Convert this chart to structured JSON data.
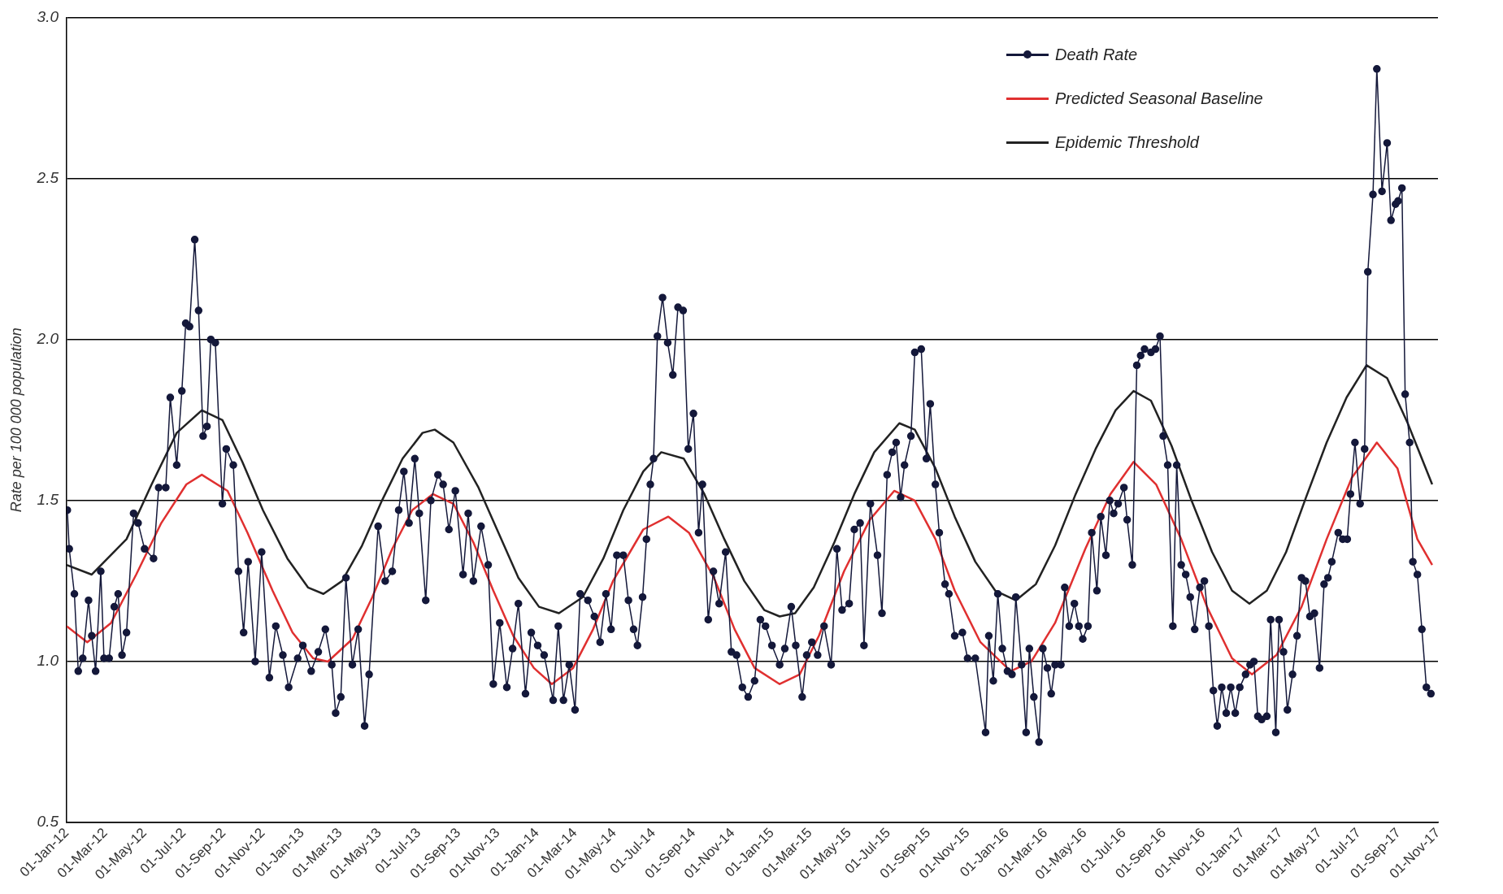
{
  "chart_data": {
    "type": "line",
    "ylabel": "Rate per 100 000 population",
    "xlim": [
      "2012-01-01",
      "2017-11-01"
    ],
    "xticks": [
      {
        "value": "2012-01-01",
        "label": "01-Jan-12"
      },
      {
        "value": "2012-03-01",
        "label": "01-Mar-12"
      },
      {
        "value": "2012-05-01",
        "label": "01-May-12"
      },
      {
        "value": "2012-07-01",
        "label": "01-Jul-12"
      },
      {
        "value": "2012-09-01",
        "label": "01-Sep-12"
      },
      {
        "value": "2012-11-01",
        "label": "01-Nov-12"
      },
      {
        "value": "2013-01-01",
        "label": "01-Jan-13"
      },
      {
        "value": "2013-03-01",
        "label": "01-Mar-13"
      },
      {
        "value": "2013-05-01",
        "label": "01-May-13"
      },
      {
        "value": "2013-07-01",
        "label": "01-Jul-13"
      },
      {
        "value": "2013-09-01",
        "label": "01-Sep-13"
      },
      {
        "value": "2013-11-01",
        "label": "01-Nov-13"
      },
      {
        "value": "2014-01-01",
        "label": "01-Jan-14"
      },
      {
        "value": "2014-03-01",
        "label": "01-Mar-14"
      },
      {
        "value": "2014-05-01",
        "label": "01-May-14"
      },
      {
        "value": "2014-07-01",
        "label": "01-Jul-14"
      },
      {
        "value": "2014-09-01",
        "label": "01-Sep-14"
      },
      {
        "value": "2014-11-01",
        "label": "01-Nov-14"
      },
      {
        "value": "2015-01-01",
        "label": "01-Jan-15"
      },
      {
        "value": "2015-03-01",
        "label": "01-Mar-15"
      },
      {
        "value": "2015-05-01",
        "label": "01-May-15"
      },
      {
        "value": "2015-07-01",
        "label": "01-Jul-15"
      },
      {
        "value": "2015-09-01",
        "label": "01-Sep-15"
      },
      {
        "value": "2015-11-01",
        "label": "01-Nov-15"
      },
      {
        "value": "2016-01-01",
        "label": "01-Jan-16"
      },
      {
        "value": "2016-03-01",
        "label": "01-Mar-16"
      },
      {
        "value": "2016-05-01",
        "label": "01-May-16"
      },
      {
        "value": "2016-07-01",
        "label": "01-Jul-16"
      },
      {
        "value": "2016-09-01",
        "label": "01-Sep-16"
      },
      {
        "value": "2016-11-01",
        "label": "01-Nov-16"
      },
      {
        "value": "2017-01-01",
        "label": "01-Jan-17"
      },
      {
        "value": "2017-03-01",
        "label": "01-Mar-17"
      },
      {
        "value": "2017-05-01",
        "label": "01-May-17"
      },
      {
        "value": "2017-07-01",
        "label": "01-Jul-17"
      },
      {
        "value": "2017-09-01",
        "label": "01-Sep-17"
      },
      {
        "value": "2017-11-01",
        "label": "01-Nov-17"
      }
    ],
    "ylim": [
      0.5,
      3.0
    ],
    "yticks": [
      0.5,
      {
        "value": 1,
        "label": "1.0"
      },
      1.5,
      {
        "value": 2,
        "label": "2.0"
      },
      2.5,
      {
        "value": 3,
        "label": "3.0"
      }
    ],
    "grid": "y",
    "legend": "top right",
    "line_style": "solid",
    "series": [
      {
        "name": "Death Rate",
        "color": "#14183a",
        "marker": "circle",
        "x": [
          "2012-01-02",
          "2012-01-05",
          "2012-01-13",
          "2012-01-19",
          "2012-01-26",
          "2012-02-04",
          "2012-02-09",
          "2012-02-15",
          "2012-02-23",
          "2012-02-28",
          "2012-03-07",
          "2012-03-15",
          "2012-03-21",
          "2012-03-27",
          "2012-04-03",
          "2012-04-14",
          "2012-04-21",
          "2012-05-01",
          "2012-05-15",
          "2012-05-23",
          "2012-06-03",
          "2012-06-10",
          "2012-06-20",
          "2012-06-28",
          "2012-07-04",
          "2012-07-10",
          "2012-07-18",
          "2012-07-24",
          "2012-07-31",
          "2012-08-06",
          "2012-08-12",
          "2012-08-19",
          "2012-08-30",
          "2012-09-05",
          "2012-09-16",
          "2012-09-24",
          "2012-10-02",
          "2012-10-09",
          "2012-10-20",
          "2012-10-30",
          "2012-11-11",
          "2012-11-21",
          "2012-12-02",
          "2012-12-11",
          "2012-12-25",
          "2013-01-02",
          "2013-01-15",
          "2013-01-26",
          "2013-02-06",
          "2013-02-16",
          "2013-02-22",
          "2013-03-02",
          "2013-03-10",
          "2013-03-20",
          "2013-03-29",
          "2013-04-08",
          "2013-04-15",
          "2013-04-29",
          "2013-05-10",
          "2013-05-21",
          "2013-05-31",
          "2013-06-08",
          "2013-06-16",
          "2013-06-25",
          "2013-07-02",
          "2013-07-12",
          "2013-07-20",
          "2013-07-31",
          "2013-08-08",
          "2013-08-17",
          "2013-08-27",
          "2013-09-08",
          "2013-09-16",
          "2013-09-24",
          "2013-10-06",
          "2013-10-17",
          "2013-10-25",
          "2013-11-04",
          "2013-11-15",
          "2013-11-24",
          "2013-12-03",
          "2013-12-14",
          "2013-12-23",
          "2014-01-02",
          "2014-01-12",
          "2014-01-26",
          "2014-02-03",
          "2014-02-11",
          "2014-02-20",
          "2014-03-01",
          "2014-03-09",
          "2014-03-21",
          "2014-03-31",
          "2014-04-09",
          "2014-04-18",
          "2014-04-26",
          "2014-05-05",
          "2014-05-15",
          "2014-05-23",
          "2014-05-31",
          "2014-06-06",
          "2014-06-14",
          "2014-06-20",
          "2014-06-26",
          "2014-07-01",
          "2014-07-07",
          "2014-07-15",
          "2014-07-23",
          "2014-07-31",
          "2014-08-08",
          "2014-08-16",
          "2014-08-24",
          "2014-09-01",
          "2014-09-09",
          "2014-09-15",
          "2014-09-24",
          "2014-10-02",
          "2014-10-11",
          "2014-10-21",
          "2014-10-30",
          "2014-11-07",
          "2014-11-16",
          "2014-11-25",
          "2014-12-05",
          "2014-12-14",
          "2014-12-22",
          "2015-01-01",
          "2015-01-13",
          "2015-01-21",
          "2015-01-31",
          "2015-02-07",
          "2015-02-17",
          "2015-02-24",
          "2015-03-04",
          "2015-03-13",
          "2015-03-23",
          "2015-04-03",
          "2015-04-12",
          "2015-04-20",
          "2015-05-01",
          "2015-05-09",
          "2015-05-18",
          "2015-05-24",
          "2015-06-03",
          "2015-06-14",
          "2015-06-21",
          "2015-06-29",
          "2015-07-07",
          "2015-07-13",
          "2015-07-20",
          "2015-07-26",
          "2015-08-05",
          "2015-08-11",
          "2015-08-21",
          "2015-08-29",
          "2015-09-04",
          "2015-09-12",
          "2015-09-18",
          "2015-09-27",
          "2015-10-03",
          "2015-10-12",
          "2015-10-24",
          "2015-11-01",
          "2015-11-13",
          "2015-11-29",
          "2015-12-04",
          "2015-12-11",
          "2015-12-18",
          "2015-12-25",
          "2016-01-02",
          "2016-01-09",
          "2016-01-15",
          "2016-01-24",
          "2016-01-31",
          "2016-02-05",
          "2016-02-12",
          "2016-02-20",
          "2016-02-26",
          "2016-03-04",
          "2016-03-10",
          "2016-03-16",
          "2016-03-25",
          "2016-03-31",
          "2016-04-07",
          "2016-04-15",
          "2016-04-22",
          "2016-04-28",
          "2016-05-06",
          "2016-05-12",
          "2016-05-20",
          "2016-05-26",
          "2016-06-03",
          "2016-06-09",
          "2016-06-15",
          "2016-06-22",
          "2016-07-01",
          "2016-07-06",
          "2016-07-14",
          "2016-07-21",
          "2016-07-27",
          "2016-08-02",
          "2016-08-12",
          "2016-08-19",
          "2016-08-26",
          "2016-08-31",
          "2016-09-07",
          "2016-09-15",
          "2016-09-21",
          "2016-09-28",
          "2016-10-05",
          "2016-10-12",
          "2016-10-19",
          "2016-10-27",
          "2016-11-03",
          "2016-11-10",
          "2016-11-17",
          "2016-11-23",
          "2016-11-30",
          "2016-12-07",
          "2016-12-14",
          "2016-12-21",
          "2016-12-28",
          "2017-01-06",
          "2017-01-13",
          "2017-01-19",
          "2017-01-25",
          "2017-01-31",
          "2017-02-08",
          "2017-02-14",
          "2017-02-22",
          "2017-02-27",
          "2017-03-06",
          "2017-03-12",
          "2017-03-20",
          "2017-03-27",
          "2017-04-03",
          "2017-04-09",
          "2017-04-16",
          "2017-04-23",
          "2017-05-01",
          "2017-05-08",
          "2017-05-14",
          "2017-05-20",
          "2017-05-30",
          "2017-06-06",
          "2017-06-13",
          "2017-06-18",
          "2017-06-25",
          "2017-07-03",
          "2017-07-10",
          "2017-07-15",
          "2017-07-23",
          "2017-07-29",
          "2017-08-06",
          "2017-08-14",
          "2017-08-20",
          "2017-08-27",
          "2017-08-31",
          "2017-09-06",
          "2017-09-11",
          "2017-09-18",
          "2017-09-23",
          "2017-09-30",
          "2017-10-07",
          "2017-10-14",
          "2017-10-21"
        ],
        "values": [
          1.47,
          1.35,
          1.21,
          0.97,
          1.01,
          1.19,
          1.08,
          0.97,
          1.28,
          1.01,
          1.01,
          1.17,
          1.21,
          1.02,
          1.09,
          1.46,
          1.43,
          1.35,
          1.32,
          1.54,
          1.54,
          1.82,
          1.61,
          1.84,
          2.05,
          2.04,
          2.31,
          2.09,
          1.7,
          1.73,
          2.0,
          1.99,
          1.49,
          1.66,
          1.61,
          1.28,
          1.09,
          1.31,
          1.0,
          1.34,
          0.95,
          1.11,
          1.02,
          0.92,
          1.01,
          1.05,
          0.97,
          1.03,
          1.1,
          0.99,
          0.84,
          0.89,
          1.26,
          0.99,
          1.1,
          0.8,
          0.96,
          1.42,
          1.25,
          1.28,
          1.47,
          1.59,
          1.43,
          1.63,
          1.46,
          1.19,
          1.5,
          1.58,
          1.55,
          1.41,
          1.53,
          1.27,
          1.46,
          1.25,
          1.42,
          1.3,
          0.93,
          1.12,
          0.92,
          1.04,
          1.18,
          0.9,
          1.09,
          1.05,
          1.02,
          0.88,
          1.11,
          0.88,
          0.99,
          0.85,
          1.21,
          1.19,
          1.14,
          1.06,
          1.21,
          1.1,
          1.33,
          1.33,
          1.19,
          1.1,
          1.05,
          1.2,
          1.38,
          1.55,
          1.63,
          2.01,
          2.13,
          1.99,
          1.89,
          2.1,
          2.09,
          1.66,
          1.77,
          1.4,
          1.55,
          1.13,
          1.28,
          1.18,
          1.34,
          1.03,
          1.02,
          0.92,
          0.89,
          0.94,
          1.13,
          1.11,
          1.05,
          0.99,
          1.04,
          1.17,
          1.05,
          0.89,
          1.02,
          1.06,
          1.02,
          1.11,
          0.99,
          1.35,
          1.16,
          1.18,
          1.41,
          1.43,
          1.05,
          1.49,
          1.33,
          1.15,
          1.58,
          1.65,
          1.68,
          1.51,
          1.61,
          1.7,
          1.96,
          1.97,
          1.63,
          1.8,
          1.55,
          1.4,
          1.24,
          1.21,
          1.08,
          1.09,
          1.01,
          1.01,
          0.78,
          1.08,
          0.94,
          1.21,
          1.04,
          0.97,
          0.96,
          1.2,
          0.99,
          0.78,
          1.04,
          0.89,
          0.75,
          1.04,
          0.98,
          0.9,
          0.99,
          0.99,
          1.23,
          1.11,
          1.18,
          1.11,
          1.07,
          1.11,
          1.4,
          1.22,
          1.45,
          1.33,
          1.5,
          1.46,
          1.49,
          1.54,
          1.44,
          1.3,
          1.92,
          1.95,
          1.97,
          1.96,
          1.97,
          2.01,
          1.7,
          1.61,
          1.11,
          1.61,
          1.3,
          1.27,
          1.2,
          1.1,
          1.23,
          1.25,
          1.11,
          0.91,
          0.8,
          0.92,
          0.84,
          0.92,
          0.84,
          0.92,
          0.96,
          0.99,
          1.0,
          0.83,
          0.82,
          0.83,
          1.13,
          0.78,
          1.13,
          1.03,
          0.85,
          0.96,
          1.08,
          1.26,
          1.25,
          1.14,
          1.15,
          0.98,
          1.24,
          1.26,
          1.31,
          1.4,
          1.38,
          1.38,
          1.52,
          1.68,
          1.49,
          1.66,
          2.21,
          2.45,
          2.84,
          2.46,
          2.61,
          2.37,
          2.42,
          2.43,
          2.47,
          1.83,
          1.68,
          1.31,
          1.27,
          1.1,
          0.92,
          0.9
        ]
      },
      {
        "name": "Predicted Seasonal Baseline",
        "color": "#e03030",
        "marker": "none",
        "x": [
          "2012-01-01",
          "2012-02-02",
          "2012-03-10",
          "2012-04-18",
          "2012-05-27",
          "2012-07-05",
          "2012-07-29",
          "2012-09-07",
          "2012-10-08",
          "2012-11-16",
          "2012-12-17",
          "2013-01-18",
          "2013-02-10",
          "2013-03-20",
          "2013-04-20",
          "2013-05-21",
          "2013-06-21",
          "2013-07-23",
          "2013-08-24",
          "2013-09-24",
          "2013-10-25",
          "2013-11-25",
          "2013-12-27",
          "2014-01-24",
          "2014-02-26",
          "2014-03-29",
          "2014-04-29",
          "2014-06-15",
          "2014-07-24",
          "2014-08-25",
          "2014-10-03",
          "2014-11-04",
          "2014-12-05",
          "2015-01-13",
          "2015-02-13",
          "2015-03-15",
          "2015-04-23",
          "2015-06-02",
          "2015-07-10",
          "2015-08-11",
          "2015-09-12",
          "2015-10-12",
          "2015-11-21",
          "2016-01-07",
          "2016-02-08",
          "2016-03-16",
          "2016-05-02",
          "2016-06-10",
          "2016-07-16",
          "2016-08-20",
          "2016-09-28",
          "2016-11-07",
          "2016-12-16",
          "2017-01-16",
          "2017-02-23",
          "2017-04-03",
          "2017-05-12",
          "2017-06-20",
          "2017-07-29",
          "2017-08-30",
          "2017-09-30",
          "2017-10-23"
        ],
        "values": [
          1.11,
          1.06,
          1.12,
          1.27,
          1.43,
          1.55,
          1.58,
          1.53,
          1.4,
          1.22,
          1.09,
          1.01,
          1.0,
          1.07,
          1.2,
          1.35,
          1.47,
          1.52,
          1.49,
          1.37,
          1.22,
          1.08,
          0.98,
          0.93,
          0.98,
          1.1,
          1.25,
          1.41,
          1.45,
          1.4,
          1.26,
          1.1,
          0.98,
          0.93,
          0.96,
          1.08,
          1.28,
          1.44,
          1.53,
          1.5,
          1.38,
          1.22,
          1.06,
          0.97,
          1.0,
          1.12,
          1.35,
          1.52,
          1.62,
          1.55,
          1.38,
          1.17,
          1.01,
          0.96,
          1.02,
          1.17,
          1.38,
          1.57,
          1.68,
          1.6,
          1.38,
          1.3
        ]
      },
      {
        "name": "Epidemic Threshold",
        "color": "#222222",
        "marker": "none",
        "x": [
          "2012-01-01",
          "2012-02-09",
          "2012-04-03",
          "2012-05-12",
          "2012-06-20",
          "2012-07-29",
          "2012-08-30",
          "2012-09-30",
          "2012-11-01",
          "2012-12-09",
          "2013-01-10",
          "2013-02-03",
          "2013-03-04",
          "2013-04-04",
          "2013-05-05",
          "2013-06-06",
          "2013-07-07",
          "2013-07-26",
          "2013-08-24",
          "2013-10-02",
          "2013-11-02",
          "2013-12-03",
          "2014-01-04",
          "2014-02-04",
          "2014-03-13",
          "2014-04-14",
          "2014-05-15",
          "2014-06-15",
          "2014-07-13",
          "2014-08-17",
          "2014-09-18",
          "2014-10-19",
          "2014-11-19",
          "2014-12-20",
          "2015-01-13",
          "2015-02-06",
          "2015-03-07",
          "2015-04-08",
          "2015-05-09",
          "2015-06-09",
          "2015-07-18",
          "2015-08-11",
          "2015-09-12",
          "2015-10-12",
          "2015-11-13",
          "2015-12-14",
          "2016-01-15",
          "2016-02-15",
          "2016-03-16",
          "2016-04-17",
          "2016-05-18",
          "2016-06-18",
          "2016-07-16",
          "2016-08-12",
          "2016-09-13",
          "2016-10-14",
          "2016-11-15",
          "2016-12-16",
          "2017-01-12",
          "2017-02-08",
          "2017-03-10",
          "2017-04-10",
          "2017-05-12",
          "2017-06-12",
          "2017-07-13",
          "2017-08-14",
          "2017-09-15",
          "2017-10-23"
        ],
        "values": [
          1.3,
          1.27,
          1.38,
          1.55,
          1.71,
          1.78,
          1.75,
          1.62,
          1.47,
          1.32,
          1.23,
          1.21,
          1.25,
          1.36,
          1.5,
          1.63,
          1.71,
          1.72,
          1.68,
          1.54,
          1.4,
          1.26,
          1.17,
          1.15,
          1.2,
          1.32,
          1.47,
          1.59,
          1.65,
          1.63,
          1.52,
          1.38,
          1.25,
          1.16,
          1.14,
          1.15,
          1.23,
          1.37,
          1.52,
          1.65,
          1.74,
          1.72,
          1.6,
          1.45,
          1.31,
          1.22,
          1.19,
          1.24,
          1.36,
          1.52,
          1.66,
          1.78,
          1.84,
          1.81,
          1.67,
          1.5,
          1.34,
          1.22,
          1.18,
          1.22,
          1.34,
          1.51,
          1.68,
          1.82,
          1.92,
          1.88,
          1.74,
          1.55
        ]
      }
    ]
  }
}
